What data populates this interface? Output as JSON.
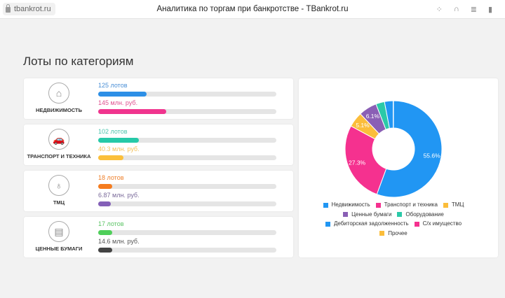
{
  "browser": {
    "url": "tbankrot.ru",
    "title": "Аналитика по торгам при банкротстве - TBankrot.ru"
  },
  "page_title": "Лоты по категориям",
  "categories": [
    {
      "name": "НЕДВИЖИМОСТЬ",
      "icon": "house-icon",
      "lots": "125 лотов",
      "lots_pct": 27,
      "lots_color": "#2d8fe6",
      "sum": "145 млн. руб.",
      "sum_pct": 38,
      "sum_color": "#f0348e",
      "sum_text_color": "#e0508f",
      "lots_text_color": "#4a8fd6"
    },
    {
      "name": "ТРАНСПОРТ И ТЕХНИКА",
      "icon": "car-icon",
      "lots": "102 лотов",
      "lots_pct": 23,
      "lots_color": "#26c9a8",
      "sum": "40.3 млн. руб.",
      "sum_pct": 14,
      "sum_color": "#fbbf3a",
      "sum_text_color": "#f4c15a",
      "lots_text_color": "#4cc4ad"
    },
    {
      "name": "ТМЦ",
      "icon": "chair-icon",
      "lots": "18 лотов",
      "lots_pct": 8,
      "lots_color": "#f57c1f",
      "sum": "6.87 млн. руб.",
      "sum_pct": 7,
      "sum_color": "#8460b8",
      "sum_text_color": "#7a6a9a",
      "lots_text_color": "#ee7f2a"
    },
    {
      "name": "ЦЕННЫЕ БУМАГИ",
      "icon": "document-icon",
      "lots": "17 лотов",
      "lots_pct": 8,
      "lots_color": "#4fcf5a",
      "sum": "14.6 млн. руб.",
      "sum_pct": 8,
      "sum_color": "#444444",
      "sum_text_color": "#555555",
      "lots_text_color": "#5cc465"
    }
  ],
  "chart_data": {
    "type": "pie",
    "donut": true,
    "categories": [
      "Недвижимость",
      "Транспорт и техника",
      "ТМЦ",
      "Ценные бумаги",
      "Оборудование",
      "Дебиторская задолженность",
      "С/х имущество",
      "Прочее"
    ],
    "values": [
      55.6,
      27.3,
      5.1,
      6.1,
      2.9,
      2.9,
      0.05,
      0.05
    ],
    "labels": [
      "55.6%",
      "27.3%",
      "5.1%",
      "6.1%",
      "",
      "",
      "",
      ""
    ],
    "colors": [
      "#2196f3",
      "#f5318f",
      "#fbbd3b",
      "#8a5fb5",
      "#2bc9a8",
      "#2196f3",
      "#f5318f",
      "#fbbd3b"
    ],
    "legend": "bottom"
  }
}
